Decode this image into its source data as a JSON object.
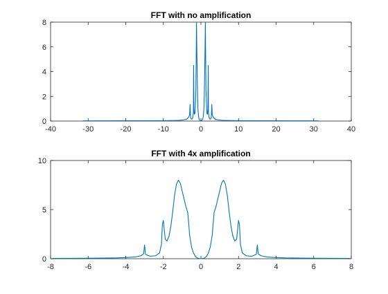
{
  "chart_data": [
    {
      "type": "line",
      "title": "FFT with no amplification",
      "xlabel": "",
      "ylabel": "",
      "xlim": [
        -40,
        40
      ],
      "ylim": [
        0,
        8
      ],
      "xticks": [
        "-40",
        "-30",
        "-20",
        "-10",
        "0",
        "10",
        "20",
        "30",
        "40"
      ],
      "yticks": [
        "0",
        "2",
        "4",
        "6",
        "8"
      ],
      "grid": false,
      "color": "#0072BD",
      "series": [
        {
          "x": [
            -31.4,
            -10,
            -6,
            -4.5,
            -3.8,
            -3.3,
            -3.0,
            -2.9,
            -2.75,
            -2.6,
            -2.4,
            -2.2,
            -2.0,
            -1.95,
            -1.85,
            -1.75,
            -1.6,
            -1.45,
            -1.35,
            -1.25,
            -1.18,
            -1.1,
            -0.95,
            -0.8,
            -0.6,
            -0.4,
            -0.2,
            0,
            0.2,
            0.4,
            0.6,
            0.8,
            0.95,
            1.1,
            1.18,
            1.25,
            1.35,
            1.45,
            1.6,
            1.75,
            1.85,
            1.95,
            2.0,
            2.2,
            2.4,
            2.6,
            2.75,
            2.9,
            3.0,
            3.3,
            3.8,
            4.5,
            6,
            10,
            31.4
          ],
          "y": [
            0.02,
            0.03,
            0.05,
            0.1,
            0.15,
            0.3,
            0.5,
            1.35,
            0.3,
            0.18,
            0.15,
            0.25,
            0.7,
            4.5,
            1.0,
            0.55,
            0.6,
            1.4,
            2.5,
            5.5,
            8.0,
            6.0,
            3.0,
            1.0,
            0.3,
            0.1,
            0.04,
            0.02,
            0.04,
            0.1,
            0.3,
            1.0,
            3.0,
            6.0,
            8.0,
            5.5,
            2.5,
            1.4,
            0.6,
            0.55,
            1.0,
            4.5,
            0.7,
            0.25,
            0.15,
            0.18,
            0.3,
            1.35,
            0.5,
            0.3,
            0.15,
            0.1,
            0.05,
            0.03,
            0.02
          ]
        }
      ]
    },
    {
      "type": "line",
      "title": "FFT with 4x amplification",
      "xlabel": "",
      "ylabel": "",
      "xlim": [
        -8,
        8
      ],
      "ylim": [
        0,
        10
      ],
      "xticks": [
        "-8",
        "-6",
        "-4",
        "-2",
        "0",
        "2",
        "4",
        "6",
        "8"
      ],
      "yticks": [
        "0",
        "5",
        "10"
      ],
      "grid": false,
      "color": "#0072BD",
      "series": [
        {
          "x": [
            -7.9,
            -6,
            -4.5,
            -4,
            -3.5,
            -3.2,
            -3.05,
            -3.0,
            -2.95,
            -2.7,
            -2.4,
            -2.2,
            -2.1,
            -2.05,
            -2.0,
            -1.9,
            -1.8,
            -1.7,
            -1.6,
            -1.5,
            -1.4,
            -1.3,
            -1.2,
            -1.1,
            -1.0,
            -0.9,
            -0.8,
            -0.7,
            -0.6,
            -0.5,
            -0.4,
            -0.3,
            -0.2,
            -0.1,
            0,
            0.1,
            0.2,
            0.3,
            0.4,
            0.5,
            0.6,
            0.7,
            0.8,
            0.9,
            1.0,
            1.1,
            1.2,
            1.3,
            1.4,
            1.5,
            1.6,
            1.7,
            1.8,
            1.9,
            2.0,
            2.05,
            2.1,
            2.2,
            2.4,
            2.7,
            2.95,
            3.0,
            3.05,
            3.2,
            3.5,
            4,
            4.5,
            6,
            7.9
          ],
          "y": [
            0.03,
            0.05,
            0.08,
            0.12,
            0.18,
            0.3,
            0.5,
            1.4,
            0.45,
            0.25,
            0.3,
            0.6,
            1.5,
            3.5,
            3.9,
            2.0,
            1.8,
            2.3,
            3.3,
            4.8,
            6.5,
            7.6,
            8.0,
            7.7,
            6.9,
            6.1,
            5.3,
            4.7,
            2.4,
            1.2,
            0.6,
            0.25,
            0.08,
            0.02,
            0.0,
            0.02,
            0.08,
            0.25,
            0.6,
            1.2,
            2.4,
            4.7,
            5.3,
            6.1,
            6.9,
            7.7,
            8.0,
            7.6,
            6.5,
            4.8,
            3.3,
            2.3,
            1.8,
            2.0,
            3.9,
            3.5,
            1.5,
            0.6,
            0.3,
            0.25,
            0.45,
            1.4,
            0.5,
            0.3,
            0.18,
            0.12,
            0.08,
            0.05,
            0.03
          ]
        }
      ]
    }
  ]
}
